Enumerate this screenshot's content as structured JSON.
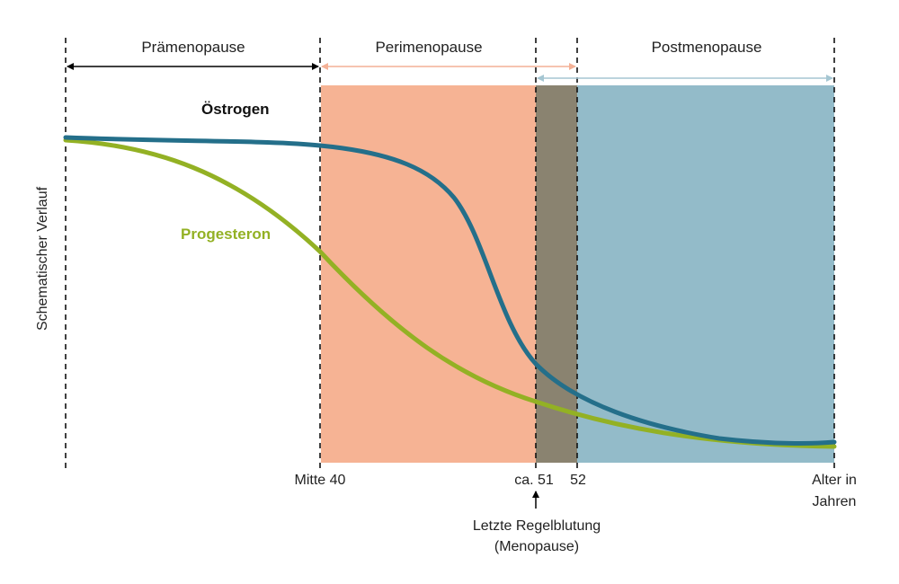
{
  "chart_data": {
    "type": "line",
    "ylabel": "Schematischer Verlauf",
    "xlabel": "Alter in Jahren",
    "xlabel_lines": [
      "Alter in",
      "Jahren"
    ],
    "phases": [
      {
        "label": "Prämenopause",
        "color": "#f6b394",
        "arrow_color": "#000000"
      },
      {
        "label": "Perimenopause",
        "color": "#f6b394",
        "arrow_color": "#f4b196"
      },
      {
        "label": "Postmenopause",
        "color": "#93bbc9",
        "arrow_color": "#a5c6d2"
      }
    ],
    "transition_band_color": "#8a8370",
    "x_ticks": [
      {
        "label": "Mitte 40"
      },
      {
        "label": "ca. 51"
      },
      {
        "label": "52"
      }
    ],
    "annotation_lines": [
      "Letzte Regelblutung",
      "(Menopause)"
    ],
    "series": [
      {
        "name": "Östrogen",
        "color": "#246f8a",
        "label_color": "#111111"
      },
      {
        "name": "Progesteron",
        "color": "#93b124",
        "label_color": "#93b124"
      }
    ],
    "x_scale": "schematic",
    "y_scale": "schematic, no ticks",
    "grid": false
  }
}
